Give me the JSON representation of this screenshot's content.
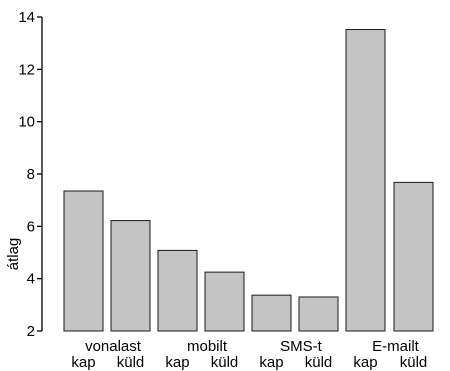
{
  "chart_data": {
    "type": "bar",
    "categories": [
      "kap",
      "küld",
      "kap",
      "küld",
      "kap",
      "küld",
      "kap",
      "küld"
    ],
    "groups": [
      "vonalast",
      "mobilt",
      "SMS-t",
      "E-mailt"
    ],
    "values": [
      7.35,
      6.22,
      5.08,
      4.25,
      3.37,
      3.3,
      13.52,
      7.68
    ],
    "ylabel": "átlag",
    "ylim": [
      2,
      14
    ],
    "yticks": [
      "2",
      "4",
      "6",
      "8",
      "10",
      "12",
      "14"
    ],
    "grid": false,
    "colors": {
      "bar_fill": "#c4c4c4",
      "bar_stroke": "#1a1a1a",
      "axis": "#000000"
    }
  }
}
